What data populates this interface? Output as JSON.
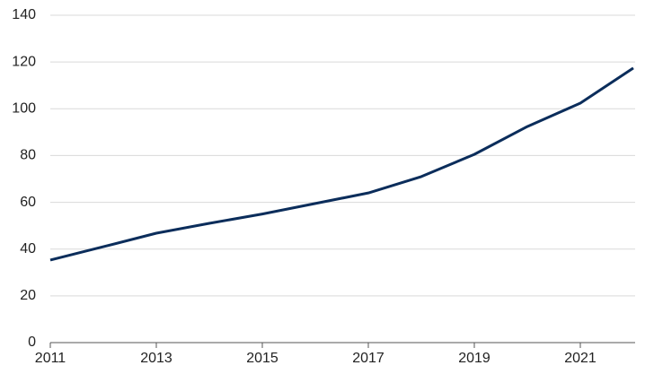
{
  "chart_data": {
    "type": "line",
    "x": [
      2011,
      2012,
      2013,
      2014,
      2015,
      2016,
      2017,
      2018,
      2019,
      2020,
      2021,
      2022
    ],
    "values": [
      35.3,
      41,
      46.8,
      51,
      55,
      59.5,
      64,
      71,
      80.5,
      92.4,
      102.4,
      117.4
    ],
    "color": "#0b2d5b",
    "xlim": [
      2011,
      2022
    ],
    "xticks": [
      2011,
      2013,
      2015,
      2017,
      2019,
      2021
    ],
    "ylim": [
      0,
      140
    ],
    "yticks": [
      0,
      20,
      40,
      60,
      80,
      100,
      120,
      140
    ],
    "grid": true
  }
}
